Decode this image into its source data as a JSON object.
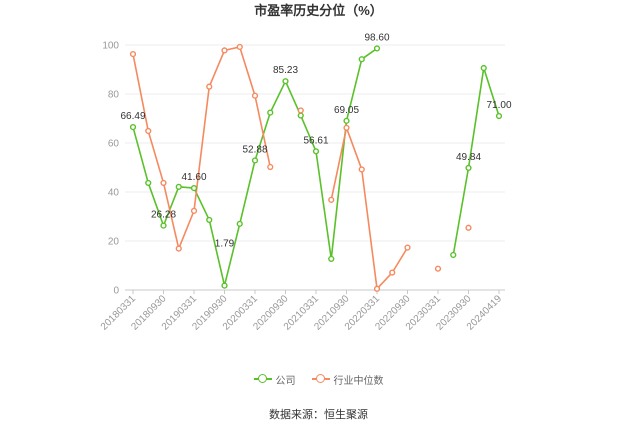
{
  "chart_data": {
    "type": "line",
    "title": "市盈率历史分位（%）",
    "categories": [
      "20180331",
      "",
      "20180930",
      "",
      "20190331",
      "",
      "20190930",
      "",
      "20200331",
      "",
      "20200930",
      "",
      "20210331",
      "",
      "20210930",
      "",
      "20220331",
      "",
      "20220930",
      "",
      "20230331",
      "",
      "20230930",
      "",
      "20240419"
    ],
    "ylim": [
      0,
      100
    ],
    "y_ticks": [
      0,
      20,
      40,
      60,
      80,
      100
    ],
    "grid": true,
    "legend": "bottom",
    "series": [
      {
        "name": "公司",
        "color": "#59c12a",
        "values": [
          66.49,
          43.7,
          26.28,
          42.1,
          41.6,
          28.6,
          1.79,
          27.0,
          52.88,
          72.4,
          85.23,
          71.2,
          56.61,
          12.7,
          69.05,
          94.2,
          98.6,
          null,
          null,
          null,
          null,
          14.3,
          49.84,
          90.6,
          71.0
        ],
        "labels": [
          "66.49",
          null,
          "26.28",
          null,
          "41.60",
          null,
          "1.79",
          null,
          "52.88",
          null,
          "85.23",
          null,
          "56.61",
          null,
          "69.05",
          null,
          "98.60",
          null,
          null,
          null,
          null,
          null,
          "49.84",
          null,
          "71.00"
        ]
      },
      {
        "name": "行业中位数",
        "color": "#f5895f",
        "values": [
          96.3,
          64.9,
          43.7,
          16.9,
          32.3,
          83.0,
          97.8,
          99.2,
          79.3,
          50.2,
          null,
          73.3,
          null,
          36.8,
          66.2,
          49.2,
          0.5,
          7.1,
          17.3,
          null,
          8.7,
          null,
          25.4,
          null,
          null
        ]
      }
    ]
  },
  "source": "数据来源：恒生聚源"
}
